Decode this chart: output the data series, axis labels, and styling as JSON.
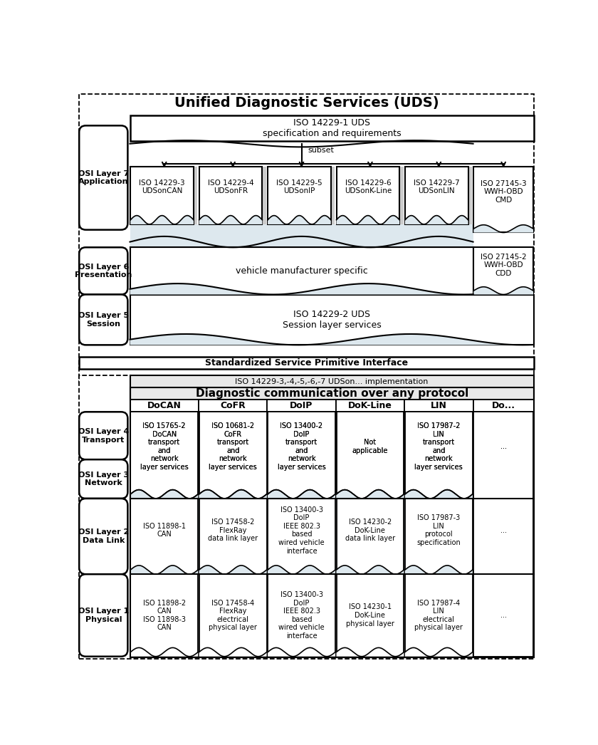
{
  "title_uds": "Unified Diagnostic Services (UDS)",
  "title_diag": "Diagnostic communication over any protocol",
  "sspi_label": "Standardized Service Primitive Interface",
  "iso_impl_label": "ISO 14229-3,-4,-5,-6,-7 UDSon... implementation",
  "iso_uds1_label": "ISO 14229-1 UDS\nspecification and requirements",
  "subset_label": "subset",
  "vehicle_mfr_label": "vehicle manufacturer specific",
  "iso_session_label": "ISO 14229-2 UDS\nSession layer services",
  "layer7_label": "OSI Layer 7\nApplication",
  "layer6_label": "OSI Layer 6\nPresentation",
  "layer5_label": "OSI Layer 5\nSession",
  "layer4_label": "OSI Layer 4\nTransport",
  "layer3_label": "OSI Layer 3\nNetwork",
  "layer2_label": "OSI Layer 2\nData Link",
  "layer1_label": "OSI Layer 1\nPhysical",
  "col_headers": [
    "DoCAN",
    "CoFR",
    "DoIP",
    "DoK-Line",
    "LIN",
    "Do..."
  ],
  "app_boxes": [
    "ISO 14229-3\nUDSonCAN",
    "ISO 14229-4\nUDSonFR",
    "ISO 14229-5\nUDSonIP",
    "ISO 14229-6\nUDSonK-Line",
    "ISO 14229-7\nUDSonLIN",
    "ISO 27145-3\nWWH-OBD\nCMD"
  ],
  "iso27145_2_label": "ISO 27145-2\nWWH-OBD\nCDD",
  "transport_boxes": [
    "ISO 15765-2\nDoCAN\ntransport\nand\nnetwork\nlayer services",
    "ISO 10681-2\nCoFR\ntransport\nand\nnetwork\nlayer services",
    "ISO 13400-2\nDoIP\ntransport\nand\nnetwork\nlayer services",
    "Not\napplicable",
    "ISO 17987-2\nLIN\ntransport\nand\nnetwork\nlayer services",
    "..."
  ],
  "datalink_boxes": [
    "ISO 11898-1\nCAN",
    "ISO 17458-2\nFlexRay\ndata link layer",
    "ISO 13400-3\nDoIP\nIEEE 802.3\nbased\nwired vehicle\ninterface",
    "ISO 14230-2\nDoK-Line\ndata link layer",
    "ISO 17987-3\nLIN\nprotocol\nspecification",
    "..."
  ],
  "physical_boxes": [
    "ISO 11898-2\nCAN\nISO 11898-3\nCAN",
    "ISO 17458-4\nFlexRay\nelectrical\nphysical layer",
    "ISO 13400-3\nDoIP\nIEEE 802.3\nbased\nwired vehicle\ninterface",
    "ISO 14230-1\nDoK-Line\nphysical layer",
    "ISO 17987-4\nLIN\nelectrical\nphysical layer",
    "..."
  ],
  "bg_color": "#ffffff",
  "wave_fill": "#dde8ee",
  "light_fill": "#eef4f8"
}
